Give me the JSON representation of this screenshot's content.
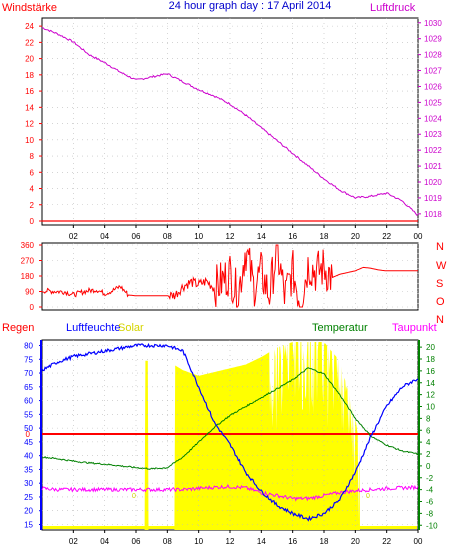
{
  "title": "24 hour graph day : 17 April 2014",
  "x_ticks": [
    "02",
    "04",
    "06",
    "08",
    "10",
    "12",
    "14",
    "16",
    "18",
    "20",
    "22",
    "00"
  ],
  "colors": {
    "frame": "#000000",
    "wind": "#ff0000",
    "pressure": "#cc00cc",
    "humidity": "#0000ff",
    "temperature": "#008000",
    "dewpoint": "#ff00ff",
    "solar": "#ffff00",
    "solar_label": "#d4d400",
    "rain": "#ff0000",
    "grid": "#bbbbbb"
  },
  "chart_data": [
    {
      "type": "line",
      "name": "pressure-wind-panel",
      "left_label": "Windstärke",
      "right_label": "Luftdruck",
      "x": [
        0,
        1,
        2,
        3,
        4,
        5,
        6,
        7,
        8,
        9,
        10,
        11,
        12,
        13,
        14,
        15,
        16,
        17,
        18,
        19,
        20,
        21,
        22,
        23,
        24
      ],
      "left_ticks": [
        0,
        2,
        4,
        6,
        8,
        10,
        12,
        14,
        16,
        18,
        20,
        22,
        24
      ],
      "left_ylim": [
        0,
        25
      ],
      "right_ticks": [
        1018,
        1019,
        1020,
        1021,
        1022,
        1023,
        1024,
        1025,
        1026,
        1027,
        1028,
        1029,
        1030
      ],
      "right_ylim": [
        1017.3,
        1030.3
      ],
      "series": [
        {
          "name": "Luftdruck",
          "values": [
            1029.7,
            1029.3,
            1028.8,
            1028.0,
            1027.5,
            1026.9,
            1026.4,
            1026.6,
            1026.8,
            1026.3,
            1025.8,
            1025.4,
            1024.9,
            1024.2,
            1023.4,
            1022.6,
            1021.8,
            1021.0,
            1020.2,
            1019.5,
            1019.0,
            1019.1,
            1019.3,
            1018.8,
            1017.9
          ]
        }
      ]
    },
    {
      "type": "line",
      "name": "wind-direction-panel",
      "left_ticks": [
        0,
        90,
        180,
        270,
        360
      ],
      "ylim": [
        0,
        360
      ],
      "right_labels": [
        "N",
        "W",
        "S",
        "O",
        "N"
      ],
      "x": [
        0,
        0.5,
        1,
        1.5,
        2,
        2.5,
        3,
        3.5,
        4,
        4.5,
        5,
        5.5,
        6,
        6.5,
        7,
        7.5,
        8,
        8.5,
        9,
        9.5,
        10,
        10.5,
        11,
        11.5,
        12,
        12.5,
        13,
        13.5,
        14,
        14.5,
        15,
        15.5,
        16,
        16.5,
        17,
        17.5,
        18,
        18.5,
        19,
        19.5,
        20,
        20.5,
        21,
        21.5,
        22,
        22.5,
        23,
        23.5,
        24
      ],
      "series": [
        {
          "name": "Windrichtung",
          "values": [
            95,
            92,
            90,
            88,
            70,
            85,
            95,
            100,
            78,
            95,
            120,
            70,
            65,
            65,
            65,
            65,
            65,
            70,
            120,
            145,
            130,
            150,
            110,
            150,
            200,
            60,
            340,
            120,
            200,
            70,
            330,
            60,
            210,
            30,
            250,
            200,
            230,
            170,
            190,
            200,
            210,
            230,
            225,
            215,
            210,
            210,
            210,
            210,
            210
          ]
        }
      ]
    },
    {
      "type": "line",
      "name": "humidity-temperature-panel",
      "left_label": "Regen",
      "humidity_label": "Luftfeuchte",
      "solar_label": "Solar",
      "temperature_label": "Temperatur",
      "dewpoint_label": "Taupunkt",
      "left_ticks": [
        15,
        20,
        25,
        30,
        35,
        40,
        45,
        50,
        55,
        60,
        65,
        70,
        75,
        80
      ],
      "left_ylim": [
        13,
        82
      ],
      "right_ticks": [
        -10,
        -8,
        -6,
        -4,
        -2,
        0,
        2,
        4,
        6,
        8,
        10,
        12,
        14,
        16,
        18,
        20
      ],
      "right_ylim": [
        -10.8,
        21.2
      ],
      "rain_level_label": "0",
      "solar_value_label": "0",
      "x": [
        0,
        1,
        2,
        3,
        4,
        5,
        6,
        7,
        8,
        9,
        10,
        11,
        12,
        13,
        14,
        15,
        16,
        17,
        18,
        19,
        20,
        21,
        22,
        23,
        24
      ],
      "series": [
        {
          "name": "Luftfeuchte",
          "values": [
            71,
            74,
            76,
            77,
            78,
            79,
            80,
            80,
            80,
            78,
            65,
            52,
            44,
            34,
            27,
            22,
            19,
            17,
            19,
            24,
            34,
            47,
            58,
            65,
            68
          ]
        },
        {
          "name": "Temperatur",
          "values": [
            1.5,
            1.2,
            0.8,
            0.5,
            0.3,
            0.0,
            -0.3,
            -0.5,
            -0.3,
            1.5,
            4.0,
            6.5,
            8.5,
            10.0,
            11.5,
            13.0,
            14.5,
            16.5,
            15.5,
            12.0,
            8.0,
            5.0,
            3.5,
            2.5,
            2.0
          ]
        },
        {
          "name": "Taupunkt",
          "values": [
            -3.8,
            -4.0,
            -4.0,
            -4.0,
            -4.0,
            -4.0,
            -4.0,
            -4.0,
            -4.0,
            -4.0,
            -3.8,
            -3.6,
            -3.5,
            -3.7,
            -4.5,
            -5.0,
            -5.5,
            -5.5,
            -5.0,
            -4.5,
            -4.2,
            -4.0,
            -3.8,
            -3.7,
            -3.6
          ]
        },
        {
          "name": "Solar",
          "values": [
            0,
            0,
            0,
            0,
            0,
            0,
            0,
            0,
            0.9,
            0.85,
            0.82,
            0.84,
            0.86,
            0.88,
            0.92,
            0.97,
            1.0,
            1.0,
            1.0,
            0.9,
            0.6,
            0,
            0,
            0,
            0
          ]
        }
      ]
    }
  ]
}
